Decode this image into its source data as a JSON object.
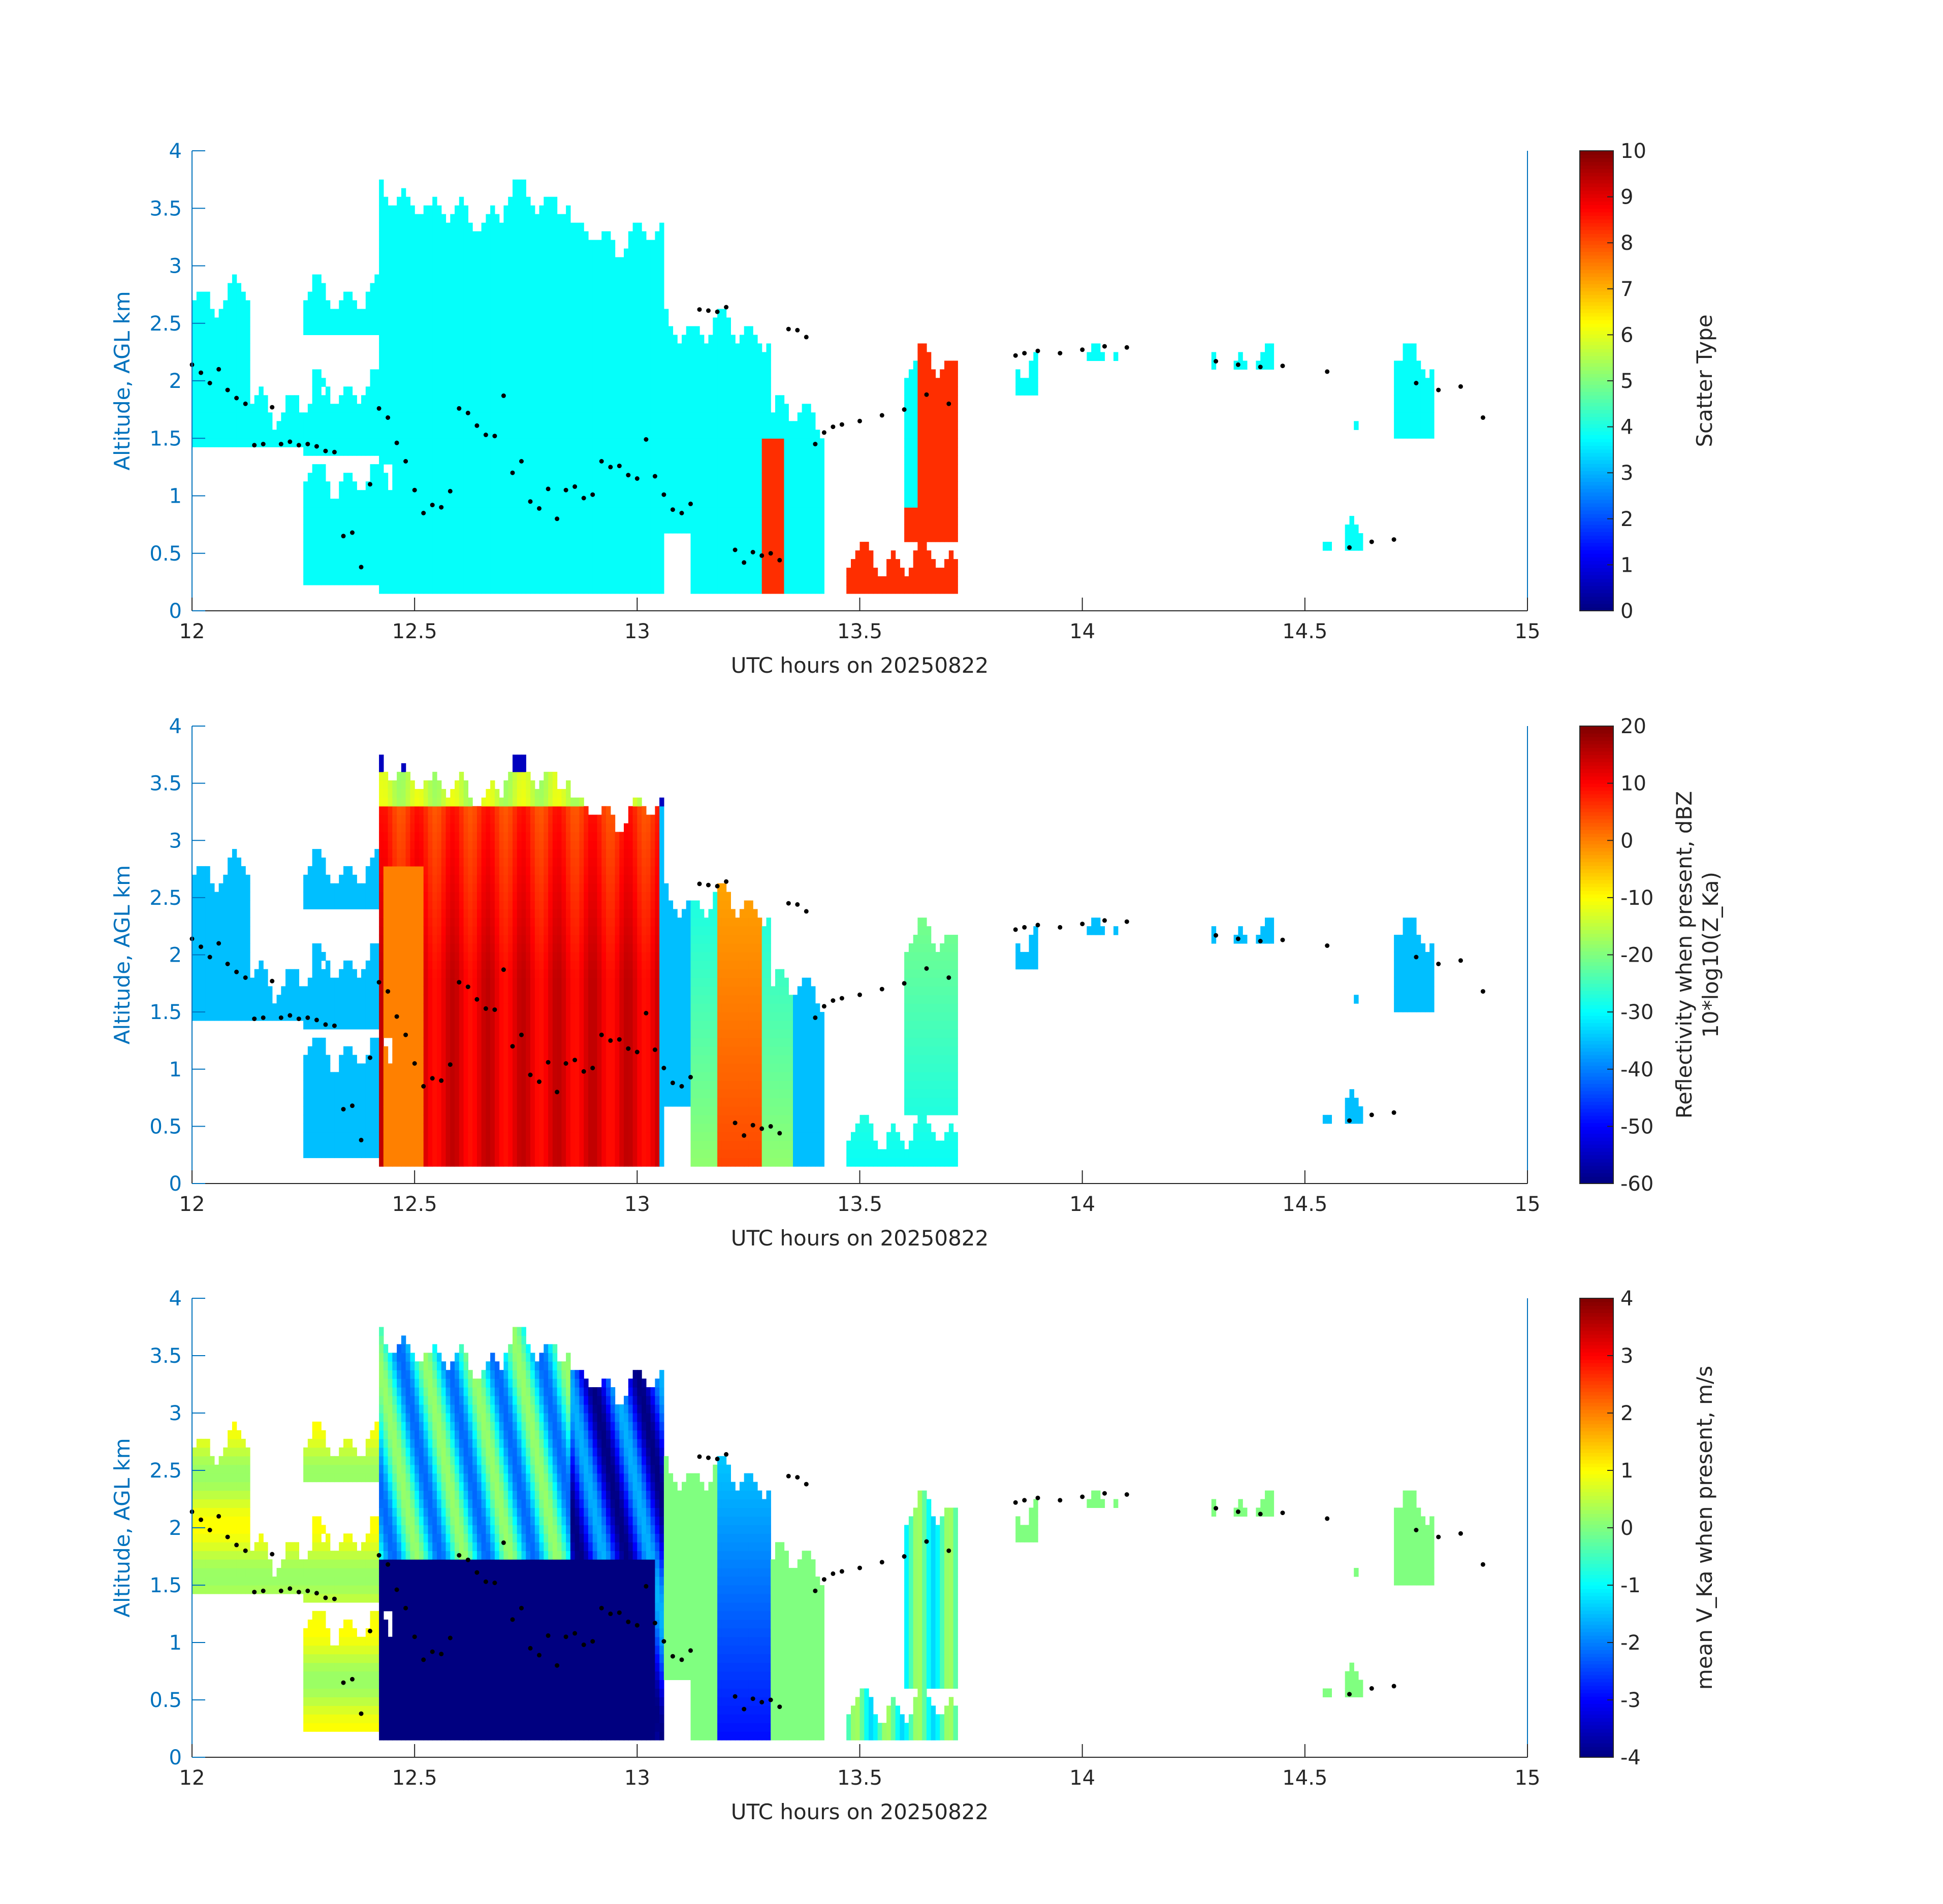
{
  "figure": {
    "background": "#ffffff",
    "yaxis_color": "#0072bd",
    "text_color": "#262626"
  },
  "chart_data": [
    {
      "type": "heatmap",
      "xlabel": "UTC hours on 20250822",
      "ylabel": "Altitude, AGL km",
      "xlim": [
        12,
        15
      ],
      "ylim": [
        0,
        4
      ],
      "xticks": [
        "12",
        "12.5",
        "13",
        "13.5",
        "14",
        "14.5",
        "15"
      ],
      "yticks": [
        "0",
        "0.5",
        "1",
        "1.5",
        "2",
        "2.5",
        "3",
        "3.5",
        "4"
      ],
      "colorbar": {
        "label": "Scatter Type",
        "label_line2": "",
        "range": [
          0,
          10
        ],
        "ticks": [
          "0",
          "1",
          "2",
          "3",
          "4",
          "5",
          "6",
          "7",
          "8",
          "9",
          "10"
        ]
      }
    },
    {
      "type": "heatmap",
      "xlabel": "UTC hours on 20250822",
      "ylabel": "Altitude, AGL km",
      "xlim": [
        12,
        15
      ],
      "ylim": [
        0,
        4
      ],
      "xticks": [
        "12",
        "12.5",
        "13",
        "13.5",
        "14",
        "14.5",
        "15"
      ],
      "yticks": [
        "0",
        "0.5",
        "1",
        "1.5",
        "2",
        "2.5",
        "3",
        "3.5",
        "4"
      ],
      "colorbar": {
        "label": "Reflectivity when present, dBZ",
        "label_line2": "10*log10(Z_Ka)",
        "range": [
          -60,
          20
        ],
        "ticks": [
          "-60",
          "-50",
          "-40",
          "-30",
          "-20",
          "-10",
          "0",
          "10",
          "20"
        ]
      }
    },
    {
      "type": "heatmap",
      "xlabel": "UTC hours on 20250822",
      "ylabel": "Altitude, AGL km",
      "xlim": [
        12,
        15
      ],
      "ylim": [
        0,
        4
      ],
      "xticks": [
        "12",
        "12.5",
        "13",
        "13.5",
        "14",
        "14.5",
        "15"
      ],
      "yticks": [
        "0",
        "0.5",
        "1",
        "1.5",
        "2",
        "2.5",
        "3",
        "3.5",
        "4"
      ],
      "colorbar": {
        "label": "mean V_Ka when present, m/s",
        "label_line2": "",
        "range": [
          -4,
          4
        ],
        "ticks": [
          "-4",
          "-3",
          "-2",
          "-1",
          "0",
          "1",
          "2",
          "3",
          "4"
        ]
      }
    }
  ],
  "cloud_base_dots": {
    "t": [
      12.0,
      12.02,
      12.04,
      12.06,
      12.08,
      12.1,
      12.12,
      12.14,
      12.16,
      12.18,
      12.2,
      12.22,
      12.24,
      12.26,
      12.28,
      12.3,
      12.32,
      12.34,
      12.36,
      12.38,
      12.4,
      12.42,
      12.44,
      12.46,
      12.48,
      12.5,
      12.52,
      12.54,
      12.56,
      12.58,
      12.6,
      12.62,
      12.64,
      12.66,
      12.68,
      12.7,
      12.72,
      12.74,
      12.76,
      12.78,
      12.8,
      12.82,
      12.84,
      12.86,
      12.88,
      12.9,
      12.92,
      12.94,
      12.96,
      12.98,
      13.0,
      13.02,
      13.04,
      13.06,
      13.08,
      13.1,
      13.12,
      13.14,
      13.16,
      13.18,
      13.2,
      13.22,
      13.24,
      13.26,
      13.28,
      13.3,
      13.32,
      13.34,
      13.36,
      13.38,
      13.4,
      13.42,
      13.44,
      13.46,
      13.5,
      13.55,
      13.6,
      13.65,
      13.7,
      13.85,
      13.87,
      13.9,
      13.95,
      14.0,
      14.05,
      14.1,
      14.3,
      14.35,
      14.4,
      14.45,
      14.55,
      14.6,
      14.65,
      14.7,
      14.75,
      14.8,
      14.85,
      14.9
    ],
    "h": [
      2.14,
      2.07,
      1.98,
      2.1,
      1.92,
      1.85,
      1.8,
      1.44,
      1.45,
      1.77,
      1.45,
      1.47,
      1.44,
      1.45,
      1.43,
      1.39,
      1.38,
      0.65,
      0.68,
      0.38,
      1.1,
      1.76,
      1.68,
      1.46,
      1.3,
      1.05,
      0.85,
      0.92,
      0.9,
      1.04,
      1.76,
      1.72,
      1.61,
      1.53,
      1.52,
      1.87,
      1.2,
      1.3,
      0.95,
      0.89,
      1.06,
      0.8,
      1.05,
      1.08,
      0.98,
      1.01,
      1.3,
      1.25,
      1.26,
      1.18,
      1.15,
      1.49,
      1.17,
      1.01,
      0.88,
      0.85,
      0.93,
      2.62,
      2.61,
      2.6,
      2.64,
      0.53,
      0.42,
      0.51,
      0.48,
      0.5,
      0.44,
      2.45,
      2.44,
      2.38,
      1.45,
      1.55,
      1.6,
      1.62,
      1.65,
      1.7,
      1.75,
      1.88,
      1.8,
      2.22,
      2.24,
      2.26,
      2.24,
      2.27,
      2.3,
      2.29,
      2.17,
      2.14,
      2.12,
      2.13,
      2.08,
      0.55,
      0.6,
      0.62,
      1.98,
      1.92,
      1.95,
      1.68
    ],
    "color": "#000000"
  },
  "colormap": "jet"
}
